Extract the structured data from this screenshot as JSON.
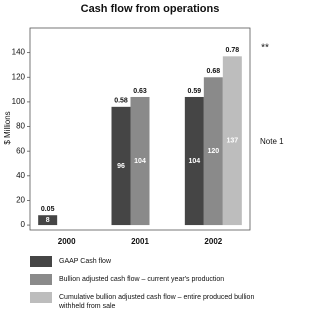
{
  "chart_data": {
    "type": "bar",
    "title": "Cash flow from operations",
    "y_label": "$ Millions",
    "categories": [
      "2000",
      "2001",
      "2002"
    ],
    "series": [
      {
        "name": "GAAP Cash flow",
        "color": "#454545",
        "values": [
          8,
          96,
          104
        ],
        "per_share_labels": [
          "0.05",
          "0.58",
          "0.59"
        ]
      },
      {
        "name": "Bullion adjusted cash flow – current year's production",
        "color": "#8a8a8a",
        "values": [
          null,
          104,
          120
        ],
        "per_share_labels": [
          null,
          "0.63",
          "0.68"
        ]
      },
      {
        "name": "Cumulative bullion adjusted cash flow – entire produced bullion withheld from sale",
        "color": "#bdbdbd",
        "values": [
          null,
          null,
          137
        ],
        "per_share_labels": [
          null,
          null,
          "0.78"
        ]
      }
    ],
    "ylim": [
      -4,
      160
    ],
    "yticks": [
      0,
      20,
      40,
      60,
      80,
      100,
      120,
      140
    ],
    "annotations": [
      "**",
      "Note 1"
    ]
  }
}
